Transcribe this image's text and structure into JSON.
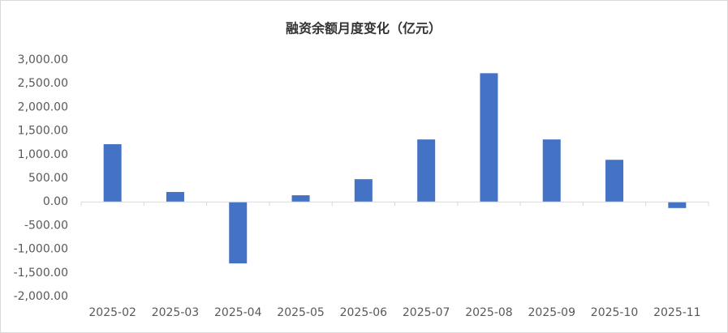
{
  "chart_data": {
    "type": "bar",
    "title": "融资余额月度变化（亿元）",
    "categories": [
      "2025-02",
      "2025-03",
      "2025-04",
      "2025-05",
      "2025-06",
      "2025-07",
      "2025-08",
      "2025-09",
      "2025-10",
      "2025-11"
    ],
    "values": [
      1220,
      210,
      -1300,
      140,
      480,
      1320,
      2720,
      1320,
      890,
      -130
    ],
    "color": "#4472c4",
    "ylim": [
      -2000,
      3000
    ],
    "yticks": [
      {
        "value": -2000,
        "label": "-2,000.00"
      },
      {
        "value": -1500,
        "label": "-1,500.00"
      },
      {
        "value": -1000,
        "label": "-1,000.00"
      },
      {
        "value": -500,
        "label": "-500.00"
      },
      {
        "value": 0,
        "label": "0.00"
      },
      {
        "value": 500,
        "label": "500.00"
      },
      {
        "value": 1000,
        "label": "1,000.00"
      },
      {
        "value": 1500,
        "label": "1,500.00"
      },
      {
        "value": 2000,
        "label": "2,000.00"
      },
      {
        "value": 2500,
        "label": "2,500.00"
      },
      {
        "value": 3000,
        "label": "3,000.00"
      }
    ],
    "grid": false
  }
}
